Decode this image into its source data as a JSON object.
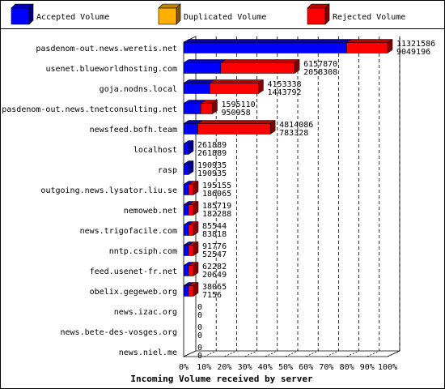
{
  "chart_data": {
    "type": "bar",
    "orientation": "horizontal",
    "stacked": true,
    "xlabel": "Incoming Volume received by server",
    "x_ticks": [
      "0%",
      "10%",
      "20%",
      "30%",
      "40%",
      "50%",
      "60%",
      "70%",
      "80%",
      "90%",
      "100%"
    ],
    "xlim": [
      0,
      100
    ],
    "grid": true,
    "legend_position": "top",
    "legend": [
      {
        "name": "Accepted Volume",
        "color": "#0000ff"
      },
      {
        "name": "Duplicated Volume",
        "color": "#ffb000"
      },
      {
        "name": "Rejected Volume",
        "color": "#ff0000"
      }
    ],
    "rows": [
      {
        "server": "pasdenom-out.news.weretis.net",
        "total": 11321586,
        "accepted": 9049196
      },
      {
        "server": "usenet.blueworldhosting.com",
        "total": 6157870,
        "accepted": 2058308
      },
      {
        "server": "goja.nodns.local",
        "total": 4153338,
        "accepted": 1443792
      },
      {
        "server": "pasdenom-out.news.tnetconsulting.net",
        "total": 1595110,
        "accepted": 950958
      },
      {
        "server": "newsfeed.bofh.team",
        "total": 4814086,
        "accepted": 783328
      },
      {
        "server": "localhost",
        "total": 261889,
        "accepted": 261889
      },
      {
        "server": "rasp",
        "total": 190935,
        "accepted": 190935
      },
      {
        "server": "outgoing.news.lysator.liu.se",
        "total": 195155,
        "accepted": 186065
      },
      {
        "server": "nemoweb.net",
        "total": 185719,
        "accepted": 182288
      },
      {
        "server": "news.trigofacile.com",
        "total": 85544,
        "accepted": 83818
      },
      {
        "server": "nntp.csiph.com",
        "total": 91776,
        "accepted": 52547
      },
      {
        "server": "feed.usenet-fr.net",
        "total": 62282,
        "accepted": 20649
      },
      {
        "server": "obelix.gegeweb.org",
        "total": 38065,
        "accepted": 7156
      },
      {
        "server": "news.izac.org",
        "total": 0,
        "accepted": 0
      },
      {
        "server": "news.bete-des-vosges.org",
        "total": 0,
        "accepted": 0
      },
      {
        "server": "news.niel.me",
        "total": 0,
        "accepted": 0
      }
    ]
  }
}
